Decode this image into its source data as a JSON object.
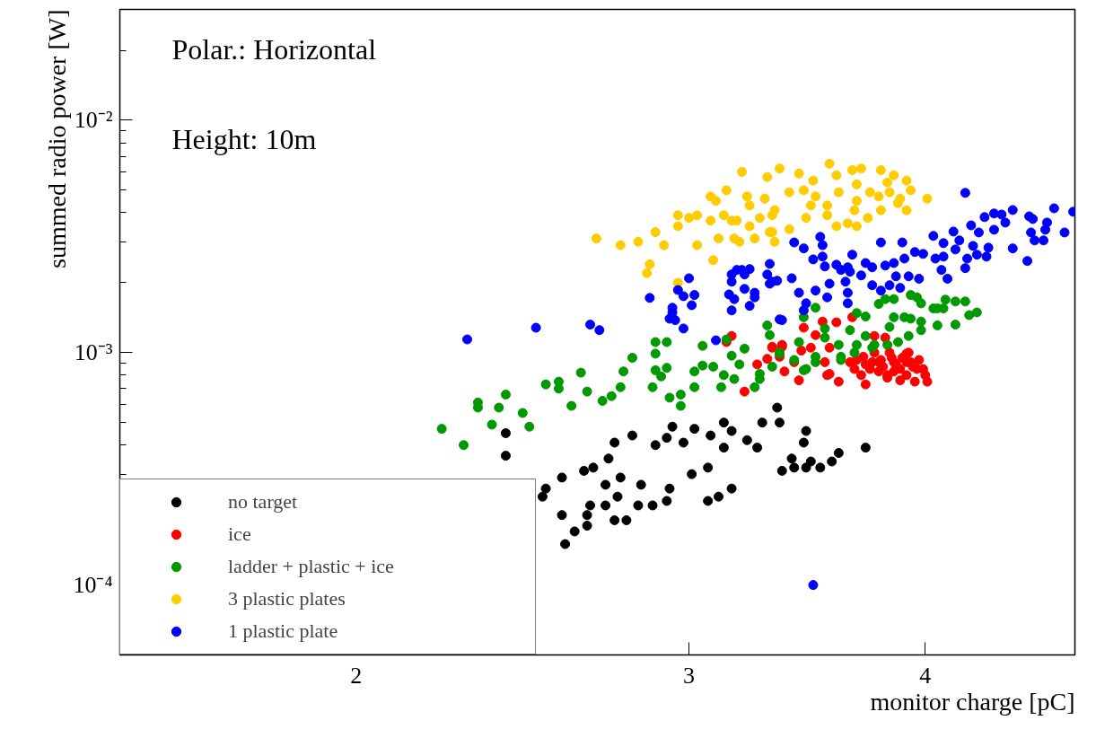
{
  "chart_data": {
    "type": "scatter",
    "xlabel": "monitor charge [pC]",
    "ylabel": "summed radio power [W]",
    "annotations": [
      "Polar.: Horizontal",
      "Height: 10m"
    ],
    "log": "xy",
    "grid": false,
    "legend": "bottom left",
    "marker": "circle",
    "xlim": [
      1.5,
      4.8
    ],
    "ylim": [
      5e-05,
      0.03
    ],
    "xticks": [
      2,
      3,
      4
    ],
    "yticks": [
      {
        "value": 5e-05,
        "label": null
      },
      {
        "value": 6e-05,
        "label": null
      },
      {
        "value": 7e-05,
        "label": null
      },
      {
        "value": 8e-05,
        "label": null
      },
      {
        "value": 9e-05,
        "label": null
      },
      {
        "value": 0.0001,
        "label": "10⁻⁴"
      },
      {
        "value": 0.0002,
        "label": null
      },
      {
        "value": 0.0003,
        "label": null
      },
      {
        "value": 0.0004,
        "label": null
      },
      {
        "value": 0.0005,
        "label": null
      },
      {
        "value": 0.0006,
        "label": null
      },
      {
        "value": 0.0007,
        "label": null
      },
      {
        "value": 0.0008,
        "label": null
      },
      {
        "value": 0.0009,
        "label": null
      },
      {
        "value": 0.001,
        "label": "10⁻³"
      },
      {
        "value": 0.002,
        "label": null
      },
      {
        "value": 0.003,
        "label": null
      },
      {
        "value": 0.004,
        "label": null
      },
      {
        "value": 0.005,
        "label": null
      },
      {
        "value": 0.006,
        "label": null
      },
      {
        "value": 0.007,
        "label": null
      },
      {
        "value": 0.008,
        "label": null
      },
      {
        "value": 0.009,
        "label": null
      },
      {
        "value": 0.01,
        "label": "10⁻²"
      },
      {
        "value": 0.02,
        "label": null
      },
      {
        "value": 0.03,
        "label": null
      }
    ],
    "series": [
      {
        "name": "no target",
        "color": "#000000",
        "x": [
          2.4,
          2.4,
          2.57,
          2.52,
          2.51,
          2.64,
          2.67,
          2.72,
          2.74,
          2.8,
          2.71,
          2.76,
          2.75,
          2.71,
          2.66,
          2.57,
          2.61,
          2.58,
          2.65,
          2.65,
          2.74,
          2.78,
          2.82,
          2.83,
          2.87,
          2.92,
          2.93,
          2.88,
          2.92,
          2.94,
          2.98,
          3.02,
          3.01,
          3.07,
          3.08,
          3.13,
          3.16,
          3.13,
          3.22,
          3.26,
          3.28,
          3.34,
          3.35,
          3.07,
          3.11,
          3.16,
          3.46,
          3.45,
          3.4,
          3.41,
          3.36,
          3.46,
          3.48,
          3.52,
          3.57,
          3.6,
          3.72
        ],
        "values": [
          0.00045,
          0.00036,
          0.00029,
          0.00026,
          0.00024,
          0.00031,
          0.00032,
          0.00035,
          0.00041,
          0.00044,
          0.00027,
          0.00029,
          0.00024,
          0.00022,
          0.00022,
          0.0002,
          0.00017,
          0.00015,
          0.00018,
          0.0002,
          0.00019,
          0.00019,
          0.00022,
          0.00027,
          0.00022,
          0.00023,
          0.00026,
          0.0004,
          0.00043,
          0.00048,
          0.00041,
          0.00047,
          0.0003,
          0.00032,
          0.00044,
          0.0005,
          0.00046,
          0.00039,
          0.00042,
          0.00039,
          0.0005,
          0.00058,
          0.0005,
          0.00023,
          0.00024,
          0.00026,
          0.00046,
          0.00041,
          0.00035,
          0.00032,
          0.00031,
          0.00032,
          0.00034,
          0.00032,
          0.00034,
          0.00037,
          0.00039
        ]
      },
      {
        "name": "ice",
        "color": "#ff0000",
        "x": [
          3.53,
          3.45,
          3.66,
          3.59,
          3.5,
          3.32,
          3.36,
          3.3,
          3.26,
          3.37,
          3.43,
          3.41,
          3.44,
          3.48,
          3.54,
          3.55,
          3.6,
          3.21,
          3.56,
          3.72,
          3.7,
          3.65,
          3.71,
          3.76,
          3.81,
          3.78,
          3.82,
          3.85,
          3.91,
          3.93,
          3.96,
          3.99,
          4.01,
          3.95,
          3.91,
          3.88,
          3.82,
          3.75,
          3.74,
          3.68,
          3.67,
          3.76,
          3.83,
          3.91,
          3.88,
          3.79,
          3.85,
          3.92,
          3.16,
          3.14,
          3.32,
          3.36,
          3.35,
          3.56,
          3.72,
          3.8,
          3.86,
          3.94,
          3.97,
          3.89,
          3.84,
          3.78,
          4.0
        ],
        "values": [
          0.00136,
          0.00128,
          0.00142,
          0.00135,
          0.00119,
          0.00105,
          0.00108,
          0.00094,
          0.00089,
          0.00083,
          0.00076,
          0.00091,
          0.00102,
          0.00105,
          0.00091,
          0.0008,
          0.00075,
          0.00068,
          0.00105,
          0.00073,
          0.0008,
          0.00091,
          0.00096,
          0.00118,
          0.00116,
          0.00091,
          0.0008,
          0.00091,
          0.00099,
          0.00091,
          0.00085,
          0.00085,
          0.00075,
          0.00075,
          0.0008,
          0.00076,
          0.00078,
          0.00091,
          0.00085,
          0.00093,
          0.00085,
          0.001,
          0.001,
          0.00091,
          0.00085,
          0.00093,
          0.00083,
          0.001,
          0.00118,
          0.00111,
          0.00106,
          0.00106,
          0.00096,
          0.00081,
          0.00089,
          0.00087,
          0.00089,
          0.00087,
          0.00093,
          0.00095,
          0.00095,
          0.00083,
          0.0008
        ]
      },
      {
        "name": "ladder + plastic + ice",
        "color": "#009900",
        "x": [
          2.22,
          2.28,
          2.32,
          2.32,
          2.38,
          2.36,
          2.4,
          2.45,
          2.47,
          2.52,
          2.56,
          2.56,
          2.6,
          2.63,
          2.65,
          2.7,
          2.73,
          2.76,
          2.77,
          2.8,
          2.88,
          2.88,
          2.9,
          2.87,
          2.92,
          2.93,
          2.97,
          2.97,
          3.02,
          3.02,
          3.05,
          3.09,
          3.12,
          3.13,
          3.16,
          3.21,
          3.19,
          3.17,
          3.25,
          3.27,
          3.32,
          3.35,
          3.45,
          3.5,
          3.61,
          3.67,
          3.75,
          3.05,
          2.88,
          2.92,
          3.14,
          3.3,
          3.31,
          3.5,
          3.45,
          3.68,
          3.72,
          3.78,
          3.81,
          3.85,
          3.93,
          3.96,
          3.98,
          3.85,
          3.9,
          3.93,
          3.98,
          3.98,
          4.04,
          4.06,
          4.09,
          4.1,
          4.15,
          4.2,
          4.26,
          4.22,
          4.06,
          4.15,
          3.92,
          3.87,
          3.83,
          3.72,
          3.65,
          3.54,
          3.54,
          3.43,
          3.5,
          3.41,
          3.35,
          3.27,
          3.68,
          3.76,
          3.82,
          3.6,
          3.61,
          3.46
        ],
        "values": [
          0.00047,
          0.0004,
          0.00058,
          0.00061,
          0.00058,
          0.00049,
          0.00066,
          0.00055,
          0.00048,
          0.00073,
          0.00075,
          0.0007,
          0.00059,
          0.00082,
          0.00068,
          0.00062,
          0.00065,
          0.00071,
          0.00083,
          0.00095,
          0.00099,
          0.00084,
          0.00079,
          0.00071,
          0.00086,
          0.00064,
          0.00066,
          0.00059,
          0.00083,
          0.00071,
          0.00088,
          0.00087,
          0.00071,
          0.0008,
          0.00097,
          0.00104,
          0.00089,
          0.00077,
          0.00071,
          0.00081,
          0.00087,
          0.001,
          0.00084,
          0.00096,
          0.00096,
          0.001,
          0.00105,
          0.00107,
          0.00111,
          0.00111,
          0.00114,
          0.00131,
          0.00119,
          0.00156,
          0.00142,
          0.00148,
          0.00143,
          0.00162,
          0.0017,
          0.0017,
          0.00177,
          0.00173,
          0.00163,
          0.00142,
          0.00142,
          0.0014,
          0.00136,
          0.00125,
          0.00155,
          0.00155,
          0.00155,
          0.00169,
          0.00166,
          0.00166,
          0.00149,
          0.00145,
          0.00131,
          0.00132,
          0.00118,
          0.00111,
          0.00129,
          0.00118,
          0.00125,
          0.00127,
          0.00116,
          0.00111,
          0.00091,
          0.00093,
          0.00099,
          0.00077,
          0.00108,
          0.00108,
          0.00108,
          0.00108,
          0.00093,
          0.00085
        ]
      },
      {
        "name": "3 plastic plates",
        "color": "#ffcc00",
        "x": [
          2.68,
          2.76,
          2.82,
          2.88,
          2.91,
          2.85,
          2.86,
          2.96,
          2.96,
          2.96,
          3.0,
          3.03,
          3.03,
          3.08,
          3.09,
          3.11,
          3.08,
          3.1,
          3.14,
          3.2,
          3.13,
          3.16,
          3.18,
          3.17,
          3.19,
          3.25,
          3.23,
          3.22,
          3.23,
          3.27,
          3.29,
          3.3,
          3.32,
          3.33,
          3.32,
          3.35,
          3.43,
          3.56,
          3.59,
          3.66,
          3.7,
          3.79,
          3.85,
          3.91,
          3.93,
          4.01,
          3.91,
          3.87,
          3.79,
          3.73,
          3.68,
          3.64,
          3.59,
          3.55,
          3.46,
          3.39,
          3.39,
          3.45,
          3.5,
          3.6,
          3.68,
          3.74,
          3.78,
          3.83,
          3.88,
          3.68,
          3.55,
          3.48,
          3.33,
          3.31,
          3.67,
          3.82,
          3.49
        ],
        "values": [
          0.0031,
          0.0029,
          0.003,
          0.0033,
          0.0029,
          0.0022,
          0.0024,
          0.002,
          0.0035,
          0.0039,
          0.0038,
          0.0039,
          0.0029,
          0.0037,
          0.0025,
          0.0031,
          0.0047,
          0.0045,
          0.005,
          0.006,
          0.0039,
          0.0037,
          0.0037,
          0.0031,
          0.003,
          0.0031,
          0.0035,
          0.0047,
          0.0043,
          0.0038,
          0.0046,
          0.0057,
          0.0033,
          0.003,
          0.0039,
          0.0062,
          0.0059,
          0.0065,
          0.0058,
          0.0061,
          0.0062,
          0.0061,
          0.0058,
          0.0055,
          0.005,
          0.0046,
          0.0041,
          0.0044,
          0.0041,
          0.0038,
          0.0035,
          0.0036,
          0.0035,
          0.0039,
          0.0038,
          0.0034,
          0.0049,
          0.005,
          0.0047,
          0.0049,
          0.0053,
          0.0049,
          0.0047,
          0.0049,
          0.0046,
          0.0045,
          0.0043,
          0.0043,
          0.0041,
          0.0033,
          0.0041,
          0.0054,
          0.0055
        ]
      },
      {
        "name": "1 plastic plate",
        "color": "#0000ff",
        "x": [
          2.29,
          2.49,
          2.66,
          2.69,
          2.86,
          2.96,
          2.98,
          3.02,
          3.01,
          2.94,
          2.94,
          2.93,
          2.95,
          2.98,
          3.0,
          3.1,
          3.16,
          3.16,
          3.18,
          3.23,
          3.21,
          3.15,
          3.17,
          3.21,
          3.25,
          3.25,
          3.23,
          3.16,
          3.31,
          3.3,
          3.31,
          3.34,
          3.35,
          3.41,
          3.45,
          3.52,
          3.53,
          3.49,
          3.53,
          3.54,
          3.59,
          3.61,
          3.64,
          3.66,
          3.65,
          3.7,
          3.72,
          3.75,
          3.79,
          3.89,
          3.81,
          3.85,
          3.9,
          3.95,
          3.99,
          4.05,
          4.09,
          4.04,
          4.09,
          4.14,
          4.17,
          4.15,
          4.23,
          4.24,
          4.27,
          4.3,
          4.35,
          4.39,
          4.41,
          4.35,
          4.45,
          4.54,
          4.56,
          4.64,
          4.63,
          4.55,
          4.57,
          4.62,
          4.68,
          4.74,
          4.79,
          4.45,
          4.53,
          4.2,
          4.32,
          4.31,
          4.26,
          4.21,
          4.2,
          4.11,
          4.08,
          3.97,
          3.92,
          3.88,
          3.83,
          3.79,
          3.86,
          3.75,
          3.64,
          3.63,
          3.64,
          3.55,
          3.5,
          3.56,
          3.43,
          3.4,
          3.46,
          3.45,
          3.36,
          3.32,
          3.2,
          3.49
        ],
        "values": [
          0.00114,
          0.00128,
          0.00132,
          0.00125,
          0.00172,
          0.00186,
          0.00175,
          0.00177,
          0.0016,
          0.00156,
          0.00149,
          0.0014,
          0.00138,
          0.00127,
          0.00209,
          0.00113,
          0.00202,
          0.00217,
          0.00227,
          0.00229,
          0.00217,
          0.00178,
          0.0017,
          0.00188,
          0.00181,
          0.00173,
          0.00159,
          0.00152,
          0.00241,
          0.00217,
          0.00198,
          0.00204,
          0.00139,
          0.00298,
          0.00281,
          0.00315,
          0.0029,
          0.00252,
          0.00259,
          0.00235,
          0.00239,
          0.00227,
          0.00233,
          0.00264,
          0.00223,
          0.00215,
          0.00243,
          0.00233,
          0.00298,
          0.00298,
          0.00237,
          0.00243,
          0.00254,
          0.00271,
          0.00266,
          0.00254,
          0.00259,
          0.00318,
          0.00296,
          0.00332,
          0.00304,
          0.00278,
          0.00353,
          0.00288,
          0.00329,
          0.00383,
          0.00397,
          0.00393,
          0.00363,
          0.00338,
          0.00411,
          0.00386,
          0.00376,
          0.00363,
          0.00338,
          0.00329,
          0.00304,
          0.00304,
          0.00418,
          0.00329,
          0.00404,
          0.00281,
          0.00248,
          0.00487,
          0.00283,
          0.00259,
          0.00264,
          0.00254,
          0.00231,
          0.00208,
          0.00227,
          0.00208,
          0.00213,
          0.0019,
          0.00195,
          0.00185,
          0.00213,
          0.00195,
          0.00181,
          0.00202,
          0.00163,
          0.00173,
          0.00185,
          0.00198,
          0.00181,
          0.00209,
          0.00163,
          0.00152,
          0.00138,
          0.00202,
          0.00227,
          0.0001
        ]
      }
    ]
  }
}
